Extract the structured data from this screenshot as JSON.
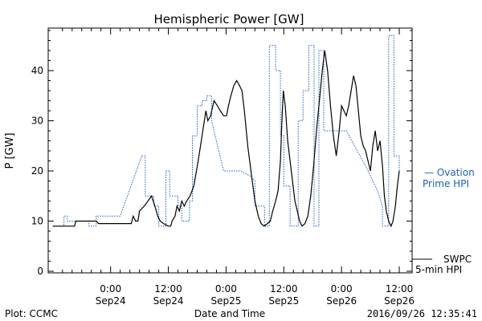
{
  "chart_data": {
    "type": "line",
    "title": "Hemispheric Power [GW]",
    "xlabel": "Date and Time",
    "ylabel": "P [GW]",
    "ylim": [
      0,
      48
    ],
    "y_ticks": [
      0,
      10,
      20,
      30,
      40
    ],
    "x_unit": "hours since Sep23 12:00",
    "xlim": [
      0,
      72
    ],
    "x_ticks": [
      {
        "x": 12,
        "line1": "0:00",
        "line2": "Sep24"
      },
      {
        "x": 24,
        "line1": "12:00",
        "line2": "Sep24"
      },
      {
        "x": 36,
        "line1": "0:00",
        "line2": "Sep25"
      },
      {
        "x": 48,
        "line1": "12:00",
        "line2": "Sep25"
      },
      {
        "x": 60,
        "line1": "0:00",
        "line2": "Sep26"
      },
      {
        "x": 72,
        "line1": "12:00",
        "line2": "Sep26"
      }
    ],
    "grid": false,
    "series": [
      {
        "name": "Ovation Prime HPI",
        "color": "#1f5fbf",
        "style": "dotted-step",
        "points": [
          [
            0,
            9
          ],
          [
            2.3,
            9
          ],
          [
            2.3,
            11
          ],
          [
            3,
            11
          ],
          [
            3,
            10
          ],
          [
            7.5,
            10
          ],
          [
            7.5,
            9
          ],
          [
            9,
            9
          ],
          [
            9,
            11
          ],
          [
            14,
            11
          ],
          [
            18.5,
            23
          ],
          [
            19.2,
            23
          ],
          [
            19.2,
            15
          ],
          [
            21,
            15
          ],
          [
            21,
            13
          ],
          [
            22,
            13
          ],
          [
            22,
            9
          ],
          [
            23.5,
            9
          ],
          [
            23.5,
            20
          ],
          [
            24.3,
            20
          ],
          [
            24.3,
            15
          ],
          [
            26,
            15
          ],
          [
            26,
            13
          ],
          [
            26.8,
            13
          ],
          [
            26.8,
            10
          ],
          [
            28.4,
            10
          ],
          [
            28.4,
            14
          ],
          [
            29,
            14
          ],
          [
            29,
            27
          ],
          [
            30,
            27
          ],
          [
            30,
            33
          ],
          [
            31,
            33
          ],
          [
            31,
            34
          ],
          [
            32,
            34
          ],
          [
            32,
            35
          ],
          [
            33,
            35
          ],
          [
            33,
            30
          ],
          [
            35.5,
            20
          ],
          [
            39,
            20
          ],
          [
            41,
            19
          ],
          [
            42,
            18
          ],
          [
            42,
            13
          ],
          [
            44,
            13
          ],
          [
            44,
            9
          ],
          [
            45,
            9
          ],
          [
            45,
            45
          ],
          [
            46.3,
            45
          ],
          [
            46.3,
            40
          ],
          [
            47.3,
            40
          ],
          [
            47.3,
            27
          ],
          [
            48,
            27
          ],
          [
            48,
            17
          ],
          [
            49.3,
            17
          ],
          [
            49.3,
            9
          ],
          [
            51,
            9
          ],
          [
            51,
            30
          ],
          [
            52,
            30
          ],
          [
            52,
            36
          ],
          [
            53.2,
            36
          ],
          [
            53.2,
            45
          ],
          [
            54.3,
            45
          ],
          [
            54.3,
            9
          ],
          [
            55.3,
            9
          ],
          [
            55.3,
            44
          ],
          [
            56.3,
            44
          ],
          [
            56.3,
            28
          ],
          [
            61,
            28
          ],
          [
            62.7,
            25
          ],
          [
            65,
            21
          ],
          [
            67.5,
            16
          ],
          [
            68.5,
            13
          ],
          [
            68.5,
            9
          ],
          [
            69.8,
            9
          ],
          [
            69.8,
            47
          ],
          [
            70.9,
            47
          ],
          [
            70.9,
            23
          ],
          [
            72,
            23
          ],
          [
            72,
            20
          ]
        ]
      },
      {
        "name": "SWPC 5-min HPI",
        "color": "#000000",
        "style": "solid",
        "points": [
          [
            0,
            9
          ],
          [
            4.5,
            9
          ],
          [
            4.8,
            10
          ],
          [
            9,
            10
          ],
          [
            9.5,
            9.5
          ],
          [
            16,
            9.5
          ],
          [
            16.3,
            9.5
          ],
          [
            16.7,
            11
          ],
          [
            17.2,
            10
          ],
          [
            17.7,
            10
          ],
          [
            18,
            12
          ],
          [
            19,
            13
          ],
          [
            20.5,
            15
          ],
          [
            21.2,
            13
          ],
          [
            21.8,
            11
          ],
          [
            22.3,
            10
          ],
          [
            23,
            9.5
          ],
          [
            24,
            9
          ],
          [
            24.5,
            9
          ],
          [
            24.8,
            10
          ],
          [
            25.4,
            11
          ],
          [
            25.8,
            13
          ],
          [
            26.3,
            12
          ],
          [
            26.8,
            14
          ],
          [
            27.3,
            13
          ],
          [
            27.8,
            14
          ],
          [
            28.5,
            15
          ],
          [
            29.3,
            17
          ],
          [
            30.2,
            22
          ],
          [
            31,
            27
          ],
          [
            31.8,
            32
          ],
          [
            32.2,
            30
          ],
          [
            32.8,
            31
          ],
          [
            33.5,
            34
          ],
          [
            34.2,
            33
          ],
          [
            34.8,
            32
          ],
          [
            35.5,
            31
          ],
          [
            36.1,
            31
          ],
          [
            36.5,
            33
          ],
          [
            37,
            35
          ],
          [
            37.6,
            37
          ],
          [
            38.2,
            38
          ],
          [
            38.8,
            37
          ],
          [
            39.3,
            36
          ],
          [
            39.8,
            32
          ],
          [
            40.5,
            25
          ],
          [
            41.3,
            19
          ],
          [
            42,
            14
          ],
          [
            42.7,
            11
          ],
          [
            43.3,
            9.5
          ],
          [
            43.9,
            9
          ],
          [
            44.6,
            9.5
          ],
          [
            45.2,
            10
          ],
          [
            45.7,
            12
          ],
          [
            46.3,
            14
          ],
          [
            46.8,
            16
          ],
          [
            47.3,
            22
          ],
          [
            47.6,
            30
          ],
          [
            47.9,
            36
          ],
          [
            48.3,
            33
          ],
          [
            48.8,
            26
          ],
          [
            49.3,
            22
          ],
          [
            49.8,
            18
          ],
          [
            50.3,
            14
          ],
          [
            50.8,
            12
          ],
          [
            51.3,
            10
          ],
          [
            51.8,
            9
          ],
          [
            52.4,
            9.5
          ],
          [
            53,
            11
          ],
          [
            53.6,
            15
          ],
          [
            54.2,
            21
          ],
          [
            54.8,
            28
          ],
          [
            55.4,
            34
          ],
          [
            56,
            40
          ],
          [
            56.5,
            44
          ],
          [
            57.1,
            40
          ],
          [
            57.7,
            33
          ],
          [
            58.3,
            27
          ],
          [
            58.9,
            23
          ],
          [
            59.5,
            28
          ],
          [
            60,
            33
          ],
          [
            60.5,
            32
          ],
          [
            61,
            31
          ],
          [
            61.5,
            33
          ],
          [
            62,
            36
          ],
          [
            62.5,
            39
          ],
          [
            63,
            37
          ],
          [
            63.5,
            32
          ],
          [
            64,
            27
          ],
          [
            64.5,
            25
          ],
          [
            65,
            24
          ],
          [
            65.5,
            22
          ],
          [
            66,
            20
          ],
          [
            66.5,
            25
          ],
          [
            67,
            28
          ],
          [
            67.5,
            24
          ],
          [
            68,
            26
          ],
          [
            68.5,
            21
          ],
          [
            68.9,
            15
          ],
          [
            69.3,
            12
          ],
          [
            69.8,
            10
          ],
          [
            70.3,
            9
          ],
          [
            70.7,
            10
          ],
          [
            71.2,
            13
          ],
          [
            71.6,
            17
          ],
          [
            72,
            20
          ]
        ]
      }
    ]
  },
  "legend": {
    "ovation_line1": "— Ovation",
    "ovation_line2": "Prime HPI",
    "swpc_line1": "SWPC",
    "swpc_line2": "5-min HPI"
  },
  "footer": {
    "plot_credit": "Plot: CCMC",
    "timestamp": "2016/09/26 12:35:41"
  }
}
